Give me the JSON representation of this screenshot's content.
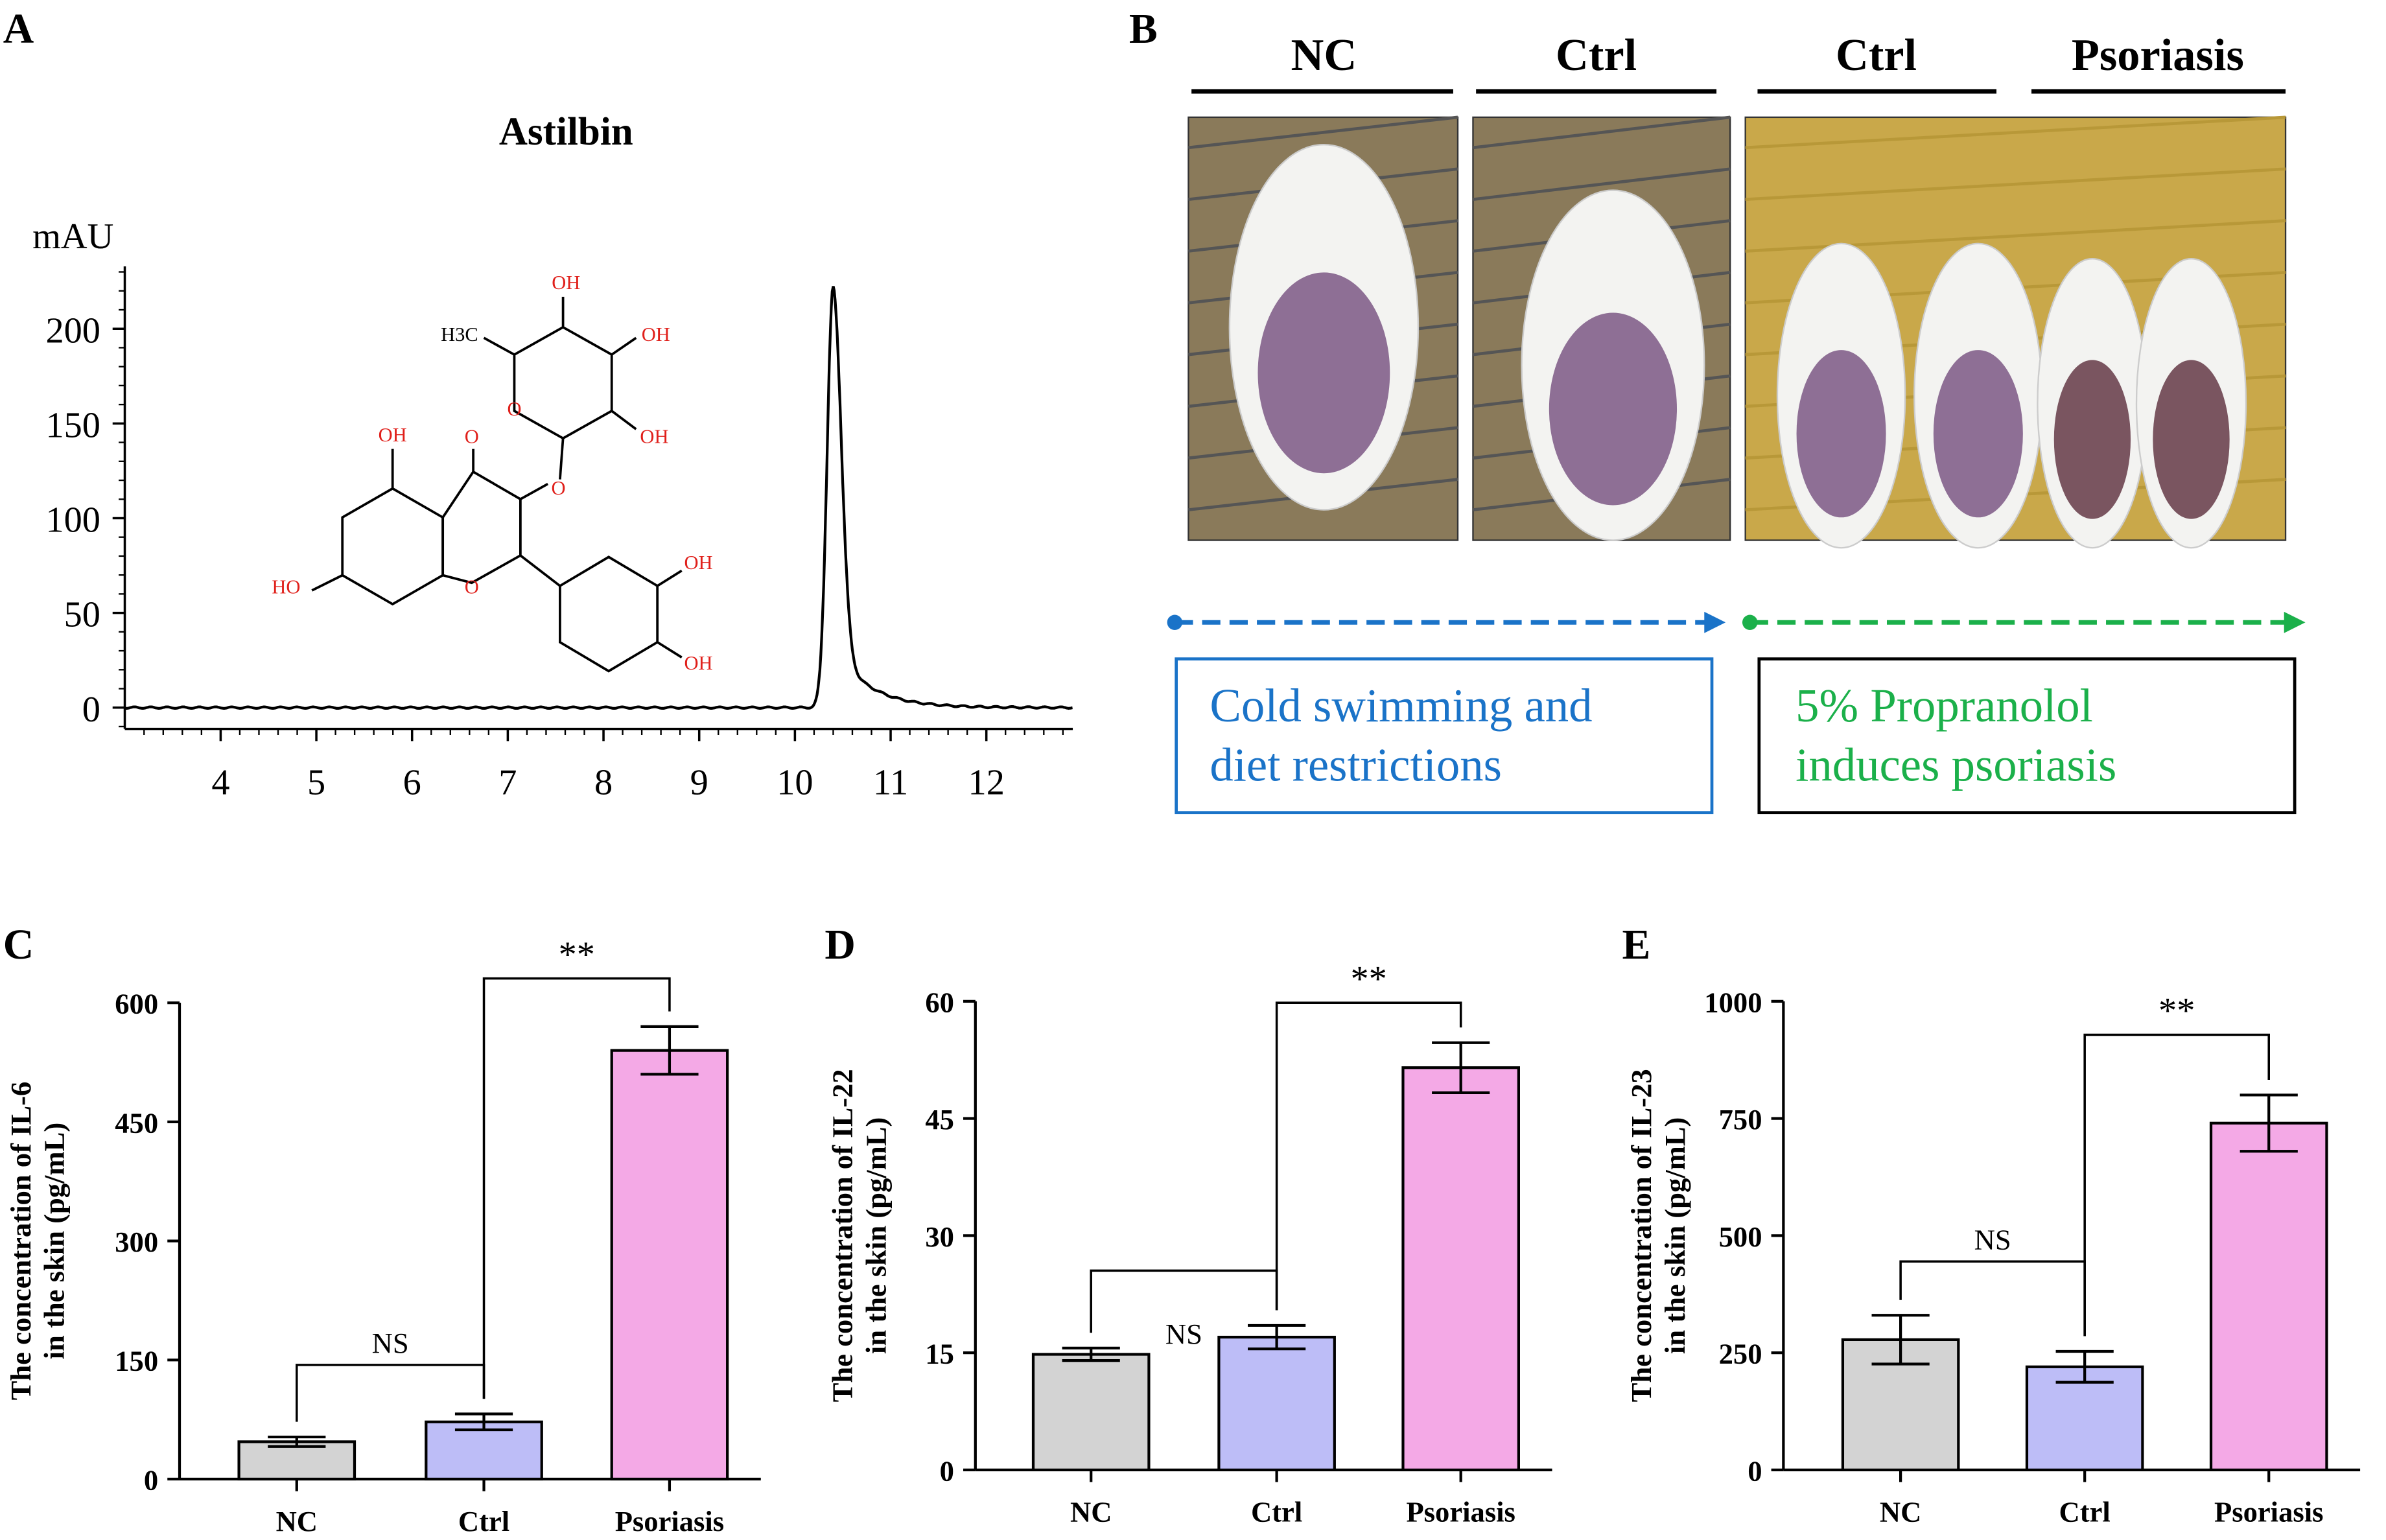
{
  "panels": {
    "A": "A",
    "B": "B",
    "C": "C",
    "D": "D",
    "E": "E"
  },
  "colors": {
    "nc_bar": "#d3d3d3",
    "ctrl_bar": "#bdbdf7",
    "psoriasis_bar": "#f4a9e6",
    "blue_arrow": "#1a73c8",
    "green_arrow": "#1bb04a",
    "structure_red": "#e0201b"
  },
  "structure_labels": [
    "OH",
    "H3C",
    "OH",
    "OH",
    "O",
    "OH",
    "O",
    "O",
    "HO",
    "O",
    "OH",
    "OH"
  ],
  "panel_b": {
    "headers": [
      "NC",
      "Ctrl",
      "Ctrl",
      "Psoriasis"
    ],
    "photo_icons": [
      "mouse-photo-nc",
      "mouse-photo-ctrl",
      "mouse-photo-ctrl-vs-psoriasis"
    ],
    "box1": [
      "Cold swimming and",
      "diet restrictions"
    ],
    "box2": [
      "5% Propranolol",
      "induces psoriasis"
    ]
  },
  "chart_data": [
    {
      "type": "line",
      "title": "Astilbin",
      "ylabel": "mAU",
      "xlabel": "",
      "xlim": [
        3,
        12.9
      ],
      "ylim": [
        0,
        230
      ],
      "xticks": [
        4,
        5,
        6,
        7,
        8,
        9,
        10,
        11,
        12
      ],
      "yticks": [
        0,
        50,
        100,
        150,
        200
      ],
      "grid": false,
      "series": [
        {
          "peak_retention_time": 10.4,
          "peak_height": 222,
          "baseline": 0
        }
      ]
    },
    {
      "type": "bar",
      "categories": [
        "NC",
        "Ctrl",
        "Psoriasis"
      ],
      "values": [
        47,
        72,
        540
      ],
      "errors": [
        6,
        10,
        30
      ],
      "ylabel": [
        "The concentration of IL-6",
        "in the skin (pg/mL)"
      ],
      "ylim": [
        0,
        600
      ],
      "yticks": [
        0,
        150,
        300,
        450,
        600
      ],
      "annotations": [
        {
          "from": "NC",
          "to": "Ctrl",
          "label": "NS"
        },
        {
          "from": "Ctrl",
          "to": "Psoriasis",
          "label": "**"
        }
      ]
    },
    {
      "type": "bar",
      "categories": [
        "NC",
        "Ctrl",
        "Psoriasis"
      ],
      "values": [
        14.8,
        17,
        51.5
      ],
      "errors": [
        0.8,
        1.5,
        3.2
      ],
      "ylabel": [
        "The concentration of IL-22",
        "in the skin (pg/mL)"
      ],
      "ylim": [
        0,
        60
      ],
      "yticks": [
        0,
        15,
        30,
        45,
        60
      ],
      "annotations": [
        {
          "from": "NC",
          "to": "Ctrl",
          "label": "NS"
        },
        {
          "from": "Ctrl",
          "to": "Psoriasis",
          "label": "**"
        }
      ]
    },
    {
      "type": "bar",
      "categories": [
        "NC",
        "Ctrl",
        "Psoriasis"
      ],
      "values": [
        278,
        220,
        740
      ],
      "errors": [
        52,
        33,
        60
      ],
      "ylabel": [
        "The concentration of IL-23",
        "in the skin (pg/mL)"
      ],
      "ylim": [
        0,
        1000
      ],
      "yticks": [
        0,
        250,
        500,
        750,
        1000
      ],
      "annotations": [
        {
          "from": "NC",
          "to": "Ctrl",
          "label": "NS"
        },
        {
          "from": "Ctrl",
          "to": "Psoriasis",
          "label": "**"
        }
      ]
    }
  ]
}
